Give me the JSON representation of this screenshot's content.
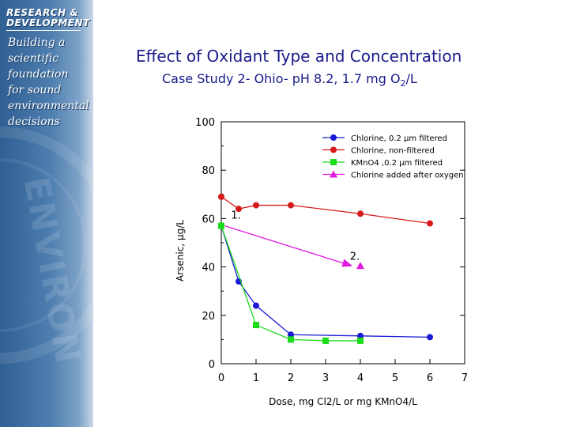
{
  "sidebar": {
    "heading_line1": "RESEARCH &",
    "heading_line2": "DEVELOPMENT",
    "tagline": [
      "Building a",
      "scientific",
      "foundation",
      "for sound",
      "environmental",
      "decisions"
    ],
    "watermark_text": "ENVIRON"
  },
  "slide": {
    "title": "Effect of Oxidant Type and Concentration",
    "subtitle_main": "Case Study 2- Ohio- pH 8.2, 1.7 mg O",
    "subtitle_sub": "2",
    "subtitle_end": "/L"
  },
  "colors": {
    "title_text": "#1a1a8c",
    "sidebar_blue": "#2f5f93",
    "filtered": "#1a1ad6",
    "nonfiltered": "#d61a1a",
    "kmno4": "#1adc1a",
    "after_oxygen": "#e01ae0"
  },
  "chart_data": {
    "type": "line",
    "xlabel": "Dose, mg Cl2/L or mg KMnO4/L",
    "ylabel": "Arsenic, µg/L",
    "xlim": [
      0,
      7
    ],
    "ylim": [
      0,
      100
    ],
    "xticks": [
      0,
      1,
      2,
      3,
      4,
      5,
      6,
      7
    ],
    "yticks": [
      0,
      20,
      40,
      60,
      80,
      100
    ],
    "legend_position": "top-right",
    "series": [
      {
        "name": "Chlorine, 0.2 µm filtered",
        "color": "#1a1ad6",
        "marker": "circle",
        "x": [
          0,
          0.5,
          1,
          2,
          4,
          6
        ],
        "y": [
          57,
          34,
          24,
          12,
          11.5,
          11
        ]
      },
      {
        "name": "Chlorine, non-filtered",
        "color": "#d61a1a",
        "marker": "circle",
        "x": [
          0,
          0.5,
          1,
          2,
          4,
          6
        ],
        "y": [
          69,
          64,
          65.5,
          65.5,
          62,
          58
        ]
      },
      {
        "name": "KMnO4 ,0.2 µm filtered",
        "color": "#1adc1a",
        "marker": "square",
        "x": [
          0,
          1,
          2,
          3,
          4
        ],
        "y": [
          57,
          16,
          10,
          9.5,
          9.5
        ]
      },
      {
        "name": "Chlorine added after oxygen",
        "color": "#e01ae0",
        "marker": "triangle",
        "x": [
          4
        ],
        "y": [
          40.5
        ]
      }
    ],
    "annotations": [
      {
        "text": "1.",
        "x": 0.28,
        "y": 60
      },
      {
        "text": "2.",
        "x": 3.7,
        "y": 43
      },
      {
        "text": "arrow",
        "from": [
          0.1,
          57
        ],
        "to": [
          3.75,
          40.5
        ]
      }
    ]
  }
}
